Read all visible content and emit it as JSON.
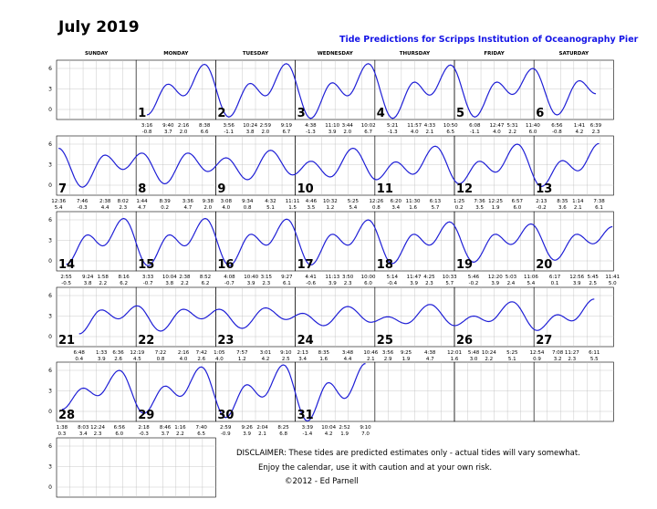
{
  "title": "July 2019",
  "subtitle": "Tide Predictions for Scripps Institution of Oceanography Pier",
  "days": [
    "SUNDAY",
    "MONDAY",
    "TUESDAY",
    "WEDNESDAY",
    "THURSDAY",
    "FRIDAY",
    "SATURDAY"
  ],
  "y_ticks": [
    "6",
    "3",
    "0"
  ],
  "line_color": "#1f1fd6",
  "weeks": [
    [
      null,
      {
        "d": "1",
        "t": [
          [
            "3:16",
            "-0.8"
          ],
          [
            "9:40",
            "3.7"
          ],
          [
            "2:16",
            "2.0"
          ],
          [
            "8:38",
            "6.6"
          ]
        ]
      },
      {
        "d": "2",
        "t": [
          [
            "3:56",
            "-1.1"
          ],
          [
            "10:24",
            "3.8"
          ],
          [
            "2:59",
            "2.0"
          ],
          [
            "9:19",
            "6.7"
          ]
        ]
      },
      {
        "d": "3",
        "t": [
          [
            "4:38",
            "-1.3"
          ],
          [
            "11:10",
            "3.9"
          ],
          [
            "3:44",
            "2.0"
          ],
          [
            "10:02",
            "6.7"
          ]
        ]
      },
      {
        "d": "4",
        "t": [
          [
            "5:21",
            "-1.3"
          ],
          [
            "11:57",
            "4.0"
          ],
          [
            "4:33",
            "2.1"
          ],
          [
            "10:50",
            "6.5"
          ]
        ]
      },
      {
        "d": "5",
        "t": [
          [
            "6:08",
            "-1.1"
          ],
          [
            "12:47",
            "4.0"
          ],
          [
            "5:31",
            "2.2"
          ],
          [
            "11:40",
            "6.0"
          ]
        ]
      },
      {
        "d": "6",
        "t": [
          [
            "6:56",
            "-0.8"
          ],
          [
            "1:41",
            "4.2"
          ],
          [
            "6:39",
            "2.3"
          ]
        ]
      }
    ],
    [
      {
        "d": "7",
        "t": [
          [
            "12:36",
            "5.4"
          ],
          [
            "7:46",
            "-0.3"
          ],
          [
            "2:38",
            "4.4"
          ],
          [
            "8:02",
            "2.3"
          ]
        ]
      },
      {
        "d": "8",
        "t": [
          [
            "1:44",
            "4.7"
          ],
          [
            "8:39",
            "0.2"
          ],
          [
            "3:36",
            "4.7"
          ],
          [
            "9:38",
            "2.0"
          ]
        ]
      },
      {
        "d": "9",
        "t": [
          [
            "3:08",
            "4.0"
          ],
          [
            "9:34",
            "0.8"
          ],
          [
            "4:32",
            "5.1"
          ],
          [
            "11:11",
            "1.5"
          ]
        ]
      },
      {
        "d": "10",
        "t": [
          [
            "4:46",
            "3.5"
          ],
          [
            "10:32",
            "1.2"
          ],
          [
            "5:25",
            "5.4"
          ]
        ]
      },
      {
        "d": "11",
        "t": [
          [
            "12:26",
            "0.8"
          ],
          [
            "6:20",
            "3.4"
          ],
          [
            "11:30",
            "1.6"
          ],
          [
            "6:13",
            "5.7"
          ]
        ]
      },
      {
        "d": "12",
        "t": [
          [
            "1:25",
            "0.2"
          ],
          [
            "7:36",
            "3.5"
          ],
          [
            "12:25",
            "1.9"
          ],
          [
            "6:57",
            "6.0"
          ]
        ]
      },
      {
        "d": "13",
        "t": [
          [
            "2:13",
            "-0.2"
          ],
          [
            "8:35",
            "3.6"
          ],
          [
            "1:14",
            "2.1"
          ],
          [
            "7:38",
            "6.1"
          ]
        ]
      }
    ],
    [
      {
        "d": "14",
        "t": [
          [
            "2:55",
            "-0.5"
          ],
          [
            "9:24",
            "3.8"
          ],
          [
            "1:58",
            "2.2"
          ],
          [
            "8:16",
            "6.2"
          ]
        ]
      },
      {
        "d": "15",
        "t": [
          [
            "3:33",
            "-0.7"
          ],
          [
            "10:04",
            "3.8"
          ],
          [
            "2:38",
            "2.2"
          ],
          [
            "8:52",
            "6.2"
          ]
        ]
      },
      {
        "d": "16",
        "t": [
          [
            "4:08",
            "-0.7"
          ],
          [
            "10:40",
            "3.9"
          ],
          [
            "3:15",
            "2.3"
          ],
          [
            "9:27",
            "6.1"
          ]
        ]
      },
      {
        "d": "17",
        "t": [
          [
            "4:41",
            "-0.6"
          ],
          [
            "11:13",
            "3.9"
          ],
          [
            "3:50",
            "2.3"
          ],
          [
            "10:00",
            "6.0"
          ]
        ]
      },
      {
        "d": "18",
        "t": [
          [
            "5:14",
            "-0.4"
          ],
          [
            "11:47",
            "3.9"
          ],
          [
            "4:25",
            "2.3"
          ],
          [
            "10:33",
            "5.7"
          ]
        ]
      },
      {
        "d": "19",
        "t": [
          [
            "5:46",
            "-0.2"
          ],
          [
            "12:20",
            "3.9"
          ],
          [
            "5:03",
            "2.4"
          ],
          [
            "11:06",
            "5.4"
          ]
        ]
      },
      {
        "d": "20",
        "t": [
          [
            "6:17",
            "0.1"
          ],
          [
            "12:56",
            "3.9"
          ],
          [
            "5:45",
            "2.5"
          ],
          [
            "11:41",
            "5.0"
          ]
        ]
      }
    ],
    [
      {
        "d": "21",
        "t": [
          [
            "6:48",
            "0.4"
          ],
          [
            "1:33",
            "3.9"
          ],
          [
            "6:36",
            "2.6"
          ],
          [
            "12:19",
            "4.5"
          ]
        ]
      },
      {
        "d": "22",
        "t": [
          [
            "7:22",
            "0.8"
          ],
          [
            "2:16",
            "4.0"
          ],
          [
            "7:42",
            "2.6"
          ]
        ]
      },
      {
        "d": "23",
        "t": [
          [
            "1:05",
            "4.0"
          ],
          [
            "7:57",
            "1.2"
          ],
          [
            "3:01",
            "4.2"
          ],
          [
            "9:10",
            "2.5"
          ]
        ]
      },
      {
        "d": "24",
        "t": [
          [
            "2:13",
            "3.4"
          ],
          [
            "8:35",
            "1.6"
          ],
          [
            "3:48",
            "4.4"
          ],
          [
            "10:46",
            "2.1"
          ]
        ]
      },
      {
        "d": "25",
        "t": [
          [
            "3:56",
            "2.9"
          ],
          [
            "9:25",
            "1.9"
          ],
          [
            "4:38",
            "4.7"
          ]
        ]
      },
      {
        "d": "26",
        "t": [
          [
            "12:01",
            "1.6"
          ],
          [
            "5:48",
            "3.0"
          ],
          [
            "10:24",
            "2.2"
          ],
          [
            "5:25",
            "5.1"
          ]
        ]
      },
      {
        "d": "27",
        "t": [
          [
            "12:54",
            "0.9"
          ],
          [
            "7:08",
            "3.2"
          ],
          [
            "11:27",
            "2.3"
          ],
          [
            "6:11",
            "5.5"
          ]
        ]
      }
    ],
    [
      {
        "d": "28",
        "t": [
          [
            "1:38",
            "0.3"
          ],
          [
            "8:03",
            "3.4"
          ],
          [
            "12:24",
            "2.3"
          ],
          [
            "6:56",
            "6.0"
          ]
        ]
      },
      {
        "d": "29",
        "t": [
          [
            "2:18",
            "-0.3"
          ],
          [
            "8:46",
            "3.7"
          ],
          [
            "1:16",
            "2.2"
          ],
          [
            "7:40",
            "6.5"
          ]
        ]
      },
      {
        "d": "30",
        "t": [
          [
            "2:59",
            "-0.9"
          ],
          [
            "9:26",
            "3.9"
          ],
          [
            "2:04",
            "2.1"
          ],
          [
            "8:25",
            "6.8"
          ]
        ]
      },
      {
        "d": "31",
        "t": [
          [
            "3:39",
            "-1.4"
          ],
          [
            "10:04",
            "4.2"
          ],
          [
            "2:52",
            "1.9"
          ],
          [
            "9:10",
            "7.0"
          ]
        ]
      },
      null,
      null,
      null
    ]
  ],
  "disclaimer": [
    "DISCLAIMER: These tides are predicted estimates only - actual tides will vary somewhat.",
    "Enjoy the calendar, use it with caution and at your own risk.",
    "©2012 - Ed Parnell"
  ]
}
